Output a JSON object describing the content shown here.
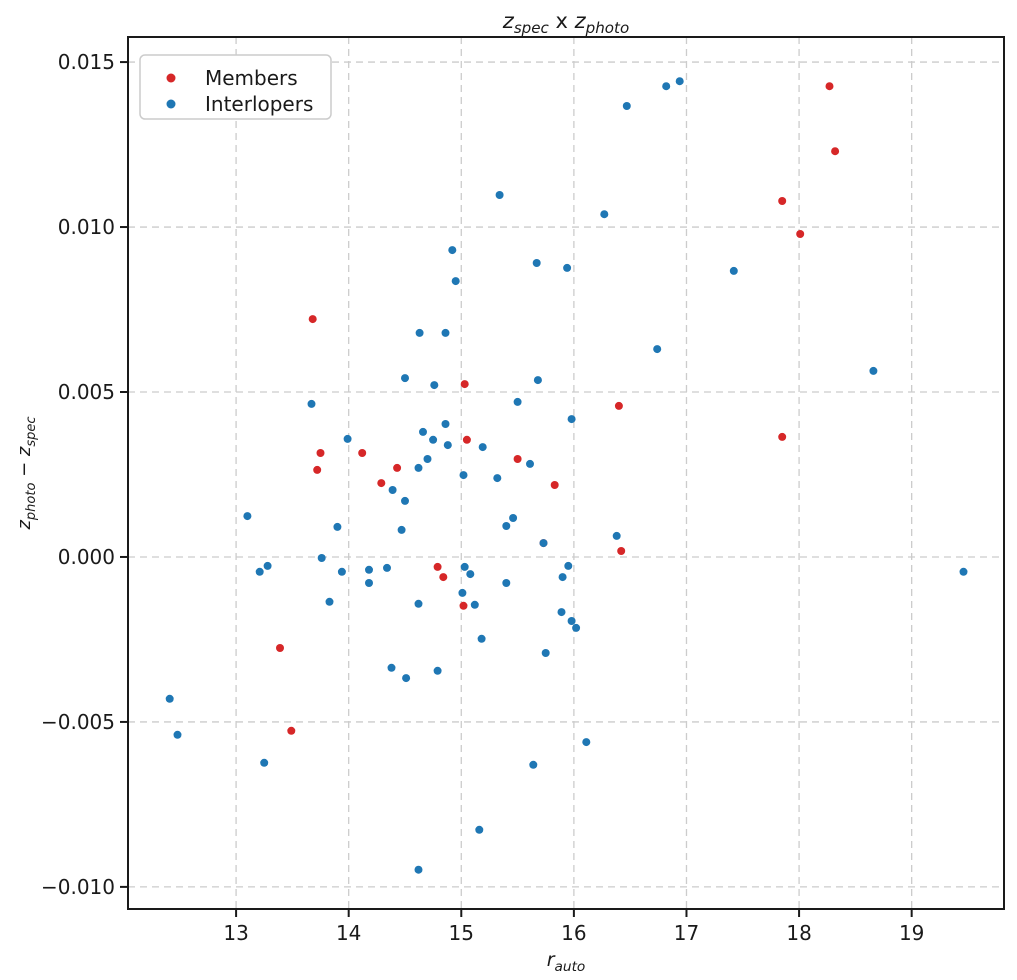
{
  "figure": {
    "title_plain": "z_spec x z_photo",
    "title_segments": [
      {
        "text": "z",
        "style": "italic"
      },
      {
        "text": "spec",
        "style": "sub"
      },
      {
        "text": " x ",
        "style": "normal"
      },
      {
        "text": "z",
        "style": "italic"
      },
      {
        "text": "photo",
        "style": "sub"
      }
    ],
    "xlabel_segments": [
      {
        "text": "r",
        "style": "italic"
      },
      {
        "text": "auto",
        "style": "sub"
      }
    ],
    "ylabel_segments": [
      {
        "text": "z",
        "style": "italic"
      },
      {
        "text": "photo",
        "style": "sub"
      },
      {
        "text": " − ",
        "style": "normal"
      },
      {
        "text": "z",
        "style": "italic"
      },
      {
        "text": "spec",
        "style": "sub"
      }
    ]
  },
  "legend": {
    "position": "upper left",
    "entries": [
      {
        "label": "Members",
        "color": "#d62728"
      },
      {
        "label": "Interlopers",
        "color": "#1f77b4"
      }
    ]
  },
  "chart_data": {
    "type": "scatter",
    "title": "z_spec x z_photo",
    "xlabel": "r_auto",
    "ylabel": "z_photo − z_spec",
    "xlim": [
      12.04,
      19.82
    ],
    "ylim": [
      -0.01067,
      0.01576
    ],
    "grid": true,
    "grid_color": "#cccccc",
    "xticks": [
      13,
      14,
      15,
      16,
      17,
      18,
      19
    ],
    "xtick_labels": [
      "13",
      "14",
      "15",
      "16",
      "17",
      "18",
      "19"
    ],
    "yticks": [
      0.015,
      0.01,
      0.005,
      0.0,
      -0.005,
      -0.01
    ],
    "ytick_labels": [
      "0.015",
      "0.010",
      "0.005",
      "0.000",
      "−0.005",
      "−0.010"
    ],
    "marker_radius": 4,
    "series": [
      {
        "name": "Members",
        "color": "#d62728",
        "points": [
          [
            13.68,
            0.00721
          ],
          [
            18.27,
            0.01427
          ],
          [
            18.32,
            0.0123
          ],
          [
            17.85,
            0.01079
          ],
          [
            18.01,
            0.00979
          ],
          [
            17.85,
            0.00364
          ],
          [
            15.03,
            0.00524
          ],
          [
            16.4,
            0.00458
          ],
          [
            13.75,
            0.00315
          ],
          [
            14.12,
            0.00315
          ],
          [
            15.05,
            0.00355
          ],
          [
            13.72,
            0.00264
          ],
          [
            14.43,
            0.0027
          ],
          [
            14.29,
            0.00224
          ],
          [
            15.5,
            0.00297
          ],
          [
            15.83,
            0.00218
          ],
          [
            15.73,
            0.00042
          ],
          [
            16.42,
            0.00018
          ],
          [
            14.79,
            -0.0003
          ],
          [
            14.84,
            -0.00061
          ],
          [
            15.02,
            -0.00148
          ],
          [
            13.39,
            -0.00276
          ],
          [
            13.49,
            -0.00527
          ]
        ]
      },
      {
        "name": "Interlopers",
        "color": "#1f77b4",
        "points": [
          [
            16.82,
            0.01427
          ],
          [
            16.94,
            0.01442
          ],
          [
            16.47,
            0.01367
          ],
          [
            15.34,
            0.01097
          ],
          [
            16.27,
            0.01039
          ],
          [
            14.92,
            0.0093
          ],
          [
            15.67,
            0.00891
          ],
          [
            15.94,
            0.00876
          ],
          [
            14.95,
            0.00836
          ],
          [
            17.42,
            0.00867
          ],
          [
            18.66,
            0.00564
          ],
          [
            16.74,
            0.0063
          ],
          [
            14.63,
            0.00679
          ],
          [
            14.86,
            0.00679
          ],
          [
            14.5,
            0.00542
          ],
          [
            14.76,
            0.00521
          ],
          [
            15.68,
            0.00536
          ],
          [
            13.67,
            0.00464
          ],
          [
            15.5,
            0.0047
          ],
          [
            13.99,
            0.00358
          ],
          [
            15.98,
            0.00418
          ],
          [
            14.86,
            0.00403
          ],
          [
            14.66,
            0.00379
          ],
          [
            14.75,
            0.00355
          ],
          [
            14.88,
            0.00339
          ],
          [
            15.19,
            0.00333
          ],
          [
            14.7,
            0.00297
          ],
          [
            14.62,
            0.0027
          ],
          [
            15.61,
            0.00282
          ],
          [
            15.02,
            0.00248
          ],
          [
            15.32,
            0.00239
          ],
          [
            14.39,
            0.00203
          ],
          [
            14.5,
            0.0017
          ],
          [
            13.1,
            0.00124
          ],
          [
            15.46,
            0.00118
          ],
          [
            15.4,
            0.00094
          ],
          [
            13.9,
            0.00091
          ],
          [
            14.47,
            0.00082
          ],
          [
            15.73,
            0.00042
          ],
          [
            16.38,
            0.00064
          ],
          [
            13.76,
            -3e-05
          ],
          [
            13.28,
            -0.00027
          ],
          [
            13.21,
            -0.00045
          ],
          [
            13.94,
            -0.00045
          ],
          [
            14.18,
            -0.00039
          ],
          [
            14.34,
            -0.00033
          ],
          [
            14.18,
            -0.00079
          ],
          [
            13.83,
            -0.00136
          ],
          [
            14.62,
            -0.00142
          ],
          [
            15.03,
            -0.0003
          ],
          [
            15.08,
            -0.00052
          ],
          [
            15.4,
            -0.00079
          ],
          [
            15.01,
            -0.00109
          ],
          [
            15.12,
            -0.00145
          ],
          [
            15.95,
            -0.00027
          ],
          [
            15.9,
            -0.00061
          ],
          [
            15.89,
            -0.00167
          ],
          [
            15.98,
            -0.00194
          ],
          [
            16.02,
            -0.00215
          ],
          [
            15.18,
            -0.00248
          ],
          [
            15.75,
            -0.00291
          ],
          [
            14.38,
            -0.00336
          ],
          [
            14.79,
            -0.00345
          ],
          [
            14.51,
            -0.00367
          ],
          [
            12.41,
            -0.0043
          ],
          [
            12.48,
            -0.00539
          ],
          [
            13.25,
            -0.00624
          ],
          [
            15.64,
            -0.0063
          ],
          [
            16.11,
            -0.00561
          ],
          [
            15.16,
            -0.00827
          ],
          [
            14.62,
            -0.00948
          ],
          [
            19.46,
            -0.00045
          ]
        ]
      }
    ]
  }
}
